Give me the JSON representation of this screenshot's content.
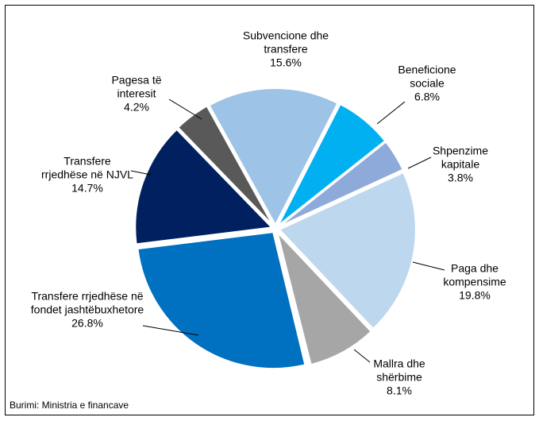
{
  "chart_data": {
    "type": "pie",
    "categories": [
      "Subvencione dhe transfere",
      "Beneficione sociale",
      "Shpenzime kapitale",
      "Paga dhe kompensime",
      "Mallra dhe shërbime",
      null,
      "Transfere rrjedhëse në fondet jashtëbuxhetore",
      "Transfere rrjedhëse në NJVL",
      "Pagesa të interesit"
    ],
    "values": [
      15.6,
      6.8,
      3.8,
      19.8,
      8.1,
      0.2,
      26.8,
      14.7,
      4.2
    ],
    "value_labels": [
      "15.6%",
      "6.8%",
      "3.8%",
      "19.8%",
      "8.1%",
      null,
      "26.8%",
      "14.7%",
      "4.2%"
    ],
    "colors": [
      "#9dc3e6",
      "#00b0f0",
      "#8eaadb",
      "#bdd7ee",
      "#a6a6a6",
      "#d9d9d9",
      "#0070c0",
      "#002060",
      "#595959"
    ],
    "source": "Burimi: Ministria e financave"
  }
}
